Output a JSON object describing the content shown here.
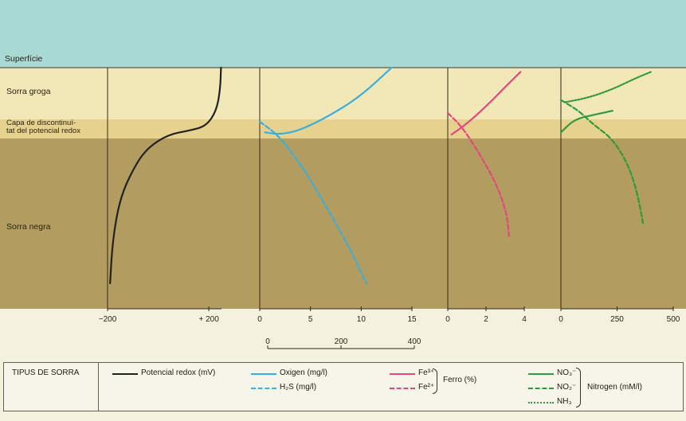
{
  "layers": {
    "surface": "Superfície",
    "yellow_sand": "Sorra groga",
    "rpd": "Capa de discontinuï-\ntat del potencial redox",
    "black_sand": "Sorra negra"
  },
  "colors": {
    "water": "#a9d9d4",
    "yellow_sand": "#f2e7b6",
    "rpd": "#e6d28e",
    "black_sand": "#b29c5f",
    "redox": "#222222",
    "oxygen": "#3aaede",
    "h2s": "#3aaede",
    "fe3": "#e2477f",
    "fe2": "#e2477f",
    "no3": "#2f9a3e",
    "no2": "#2f9a3e",
    "nh3": "#2f9a3e"
  },
  "chart_data": [
    {
      "type": "line",
      "panel": "redox",
      "x_ticks": [
        "−200",
        "+ 200"
      ],
      "series": [
        {
          "name": "Potencial redox (mV)",
          "style": "solid",
          "points": [
            [
              -190,
              1.0
            ],
            [
              -180,
              0.8
            ],
            [
              -150,
              0.6
            ],
            [
              -90,
              0.45
            ],
            [
              -40,
              0.37
            ],
            [
              40,
              0.31
            ],
            [
              130,
              0.29
            ],
            [
              190,
              0.27
            ],
            [
              230,
              0.2
            ],
            [
              245,
              0.1
            ],
            [
              248,
              0.0
            ]
          ]
        }
      ]
    },
    {
      "type": "line",
      "panel": "oxygen_h2s",
      "x_ticks": [
        "0",
        "5",
        "10",
        "15"
      ],
      "secondary_axis_ticks": [
        "0",
        "200",
        "400"
      ],
      "series": [
        {
          "name": "Oxigen (mg/l)",
          "style": "solid",
          "points": [
            [
              0.5,
              0.3
            ],
            [
              2,
              0.31
            ],
            [
              4,
              0.29
            ],
            [
              7,
              0.22
            ],
            [
              10,
              0.13
            ],
            [
              13,
              0.0
            ]
          ]
        },
        {
          "name": "H₂S (mg/l)",
          "style": "dashed",
          "points": [
            [
              0,
              0.25
            ],
            [
              2,
              0.32
            ],
            [
              4.5,
              0.48
            ],
            [
              7,
              0.68
            ],
            [
              9,
              0.85
            ],
            [
              10.5,
              1.0
            ]
          ]
        }
      ]
    },
    {
      "type": "line",
      "panel": "iron",
      "x_ticks": [
        "0",
        "2",
        "4"
      ],
      "series": [
        {
          "name": "Fe³⁺",
          "style": "solid",
          "points": [
            [
              0.2,
              0.31
            ],
            [
              1,
              0.26
            ],
            [
              2,
              0.18
            ],
            [
              3,
              0.09
            ],
            [
              3.8,
              0.02
            ]
          ]
        },
        {
          "name": "Fe²⁺",
          "style": "dashed",
          "points": [
            [
              0,
              0.21
            ],
            [
              0.8,
              0.28
            ],
            [
              1.8,
              0.42
            ],
            [
              2.6,
              0.55
            ],
            [
              3.1,
              0.68
            ],
            [
              3.2,
              0.78
            ]
          ]
        }
      ]
    },
    {
      "type": "line",
      "panel": "nitrogen",
      "x_ticks": [
        "0",
        "250",
        "500"
      ],
      "series": [
        {
          "name": "NO₃⁻",
          "style": "solid",
          "points": [
            [
              0,
              0.3
            ],
            [
              60,
              0.24
            ],
            [
              140,
              0.22
            ],
            [
              230,
              0.2
            ]
          ]
        },
        {
          "name": "NO₂⁻",
          "style": "dashed",
          "points": [
            [
              0,
              0.15
            ],
            [
              80,
              0.2
            ],
            [
              140,
              0.26
            ],
            [
              230,
              0.33
            ],
            [
              300,
              0.45
            ],
            [
              340,
              0.58
            ],
            [
              365,
              0.72
            ]
          ]
        },
        {
          "name": "NH₃",
          "style": "dotted",
          "points": [
            [
              20,
              0.16
            ],
            [
              120,
              0.14
            ],
            [
              230,
              0.1
            ],
            [
              330,
              0.05
            ],
            [
              400,
              0.02
            ]
          ]
        }
      ]
    }
  ],
  "legend": {
    "title": "TIPUS DE SORRA",
    "redox": "Potencial redox (mV)",
    "oxygen": "Oxigen (mg/l)",
    "h2s": "H₂S (mg/l)",
    "fe3": "Fe³⁺",
    "fe2": "Fe²⁺",
    "iron_group": "Ferro (%)",
    "no3": "NO₃⁻",
    "no2": "NO₂⁻",
    "nh3": "NH₃",
    "nitrogen_group": "Nitrogen (mM/l)"
  }
}
